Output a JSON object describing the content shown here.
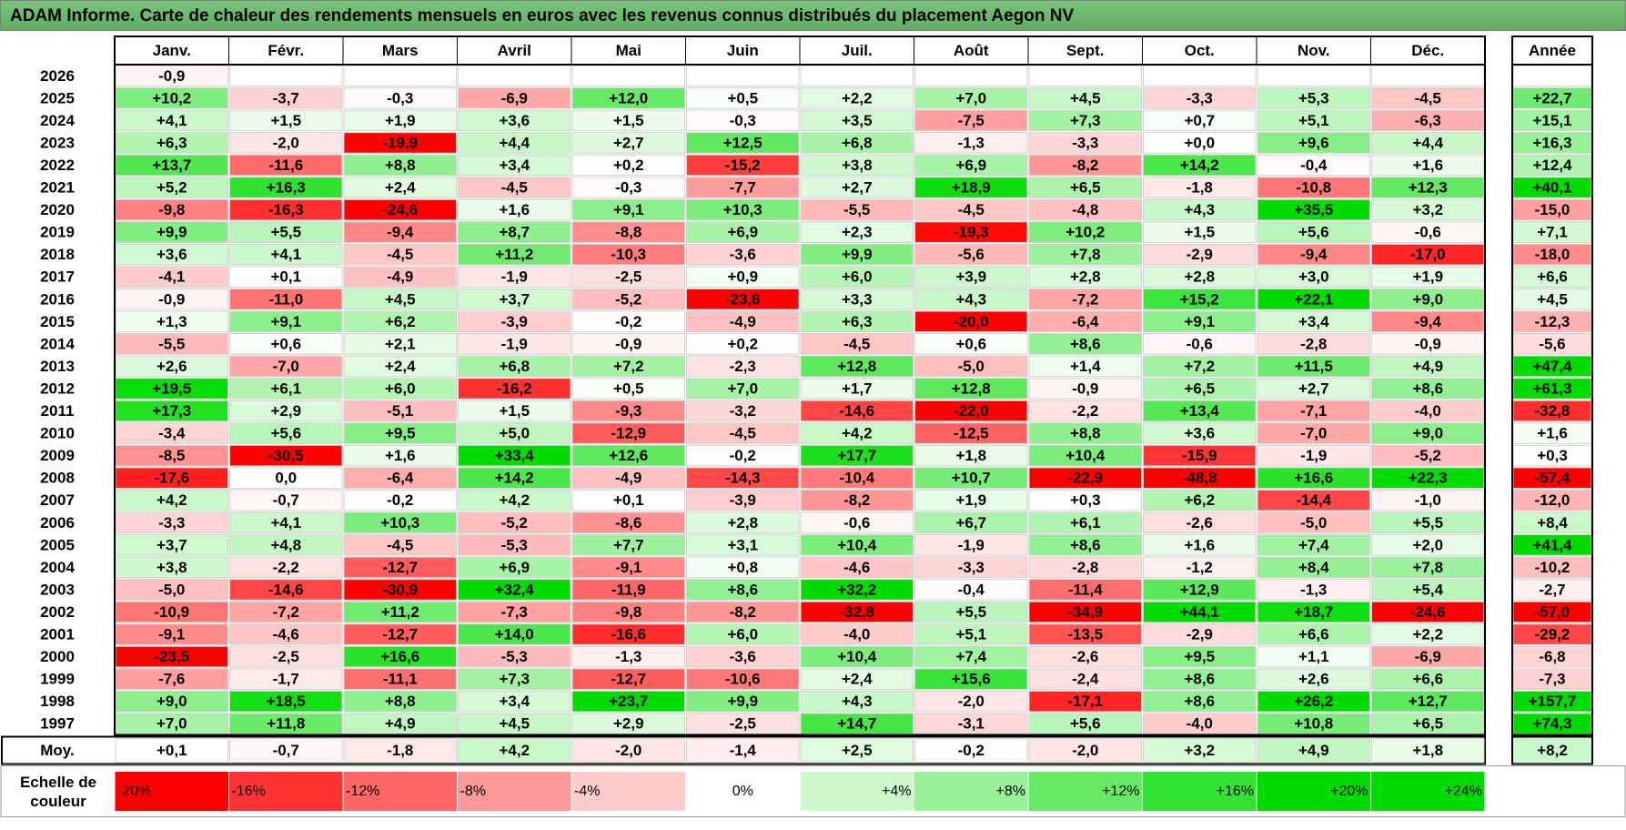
{
  "title": "ADAM Informe. Carte de chaleur des rendements mensuels en euros avec les revenus connus distribués du placement Aegon NV",
  "chart_data": {
    "type": "heatmap",
    "months": [
      "Janv.",
      "Févr.",
      "Mars",
      "Avril",
      "Mai",
      "Juin",
      "Juil.",
      "Août",
      "Sept.",
      "Oct.",
      "Nov.",
      "Déc."
    ],
    "year_header": "Année",
    "rows": [
      {
        "year": "2026",
        "months": [
          "-0,9",
          "",
          "",
          "",
          "",
          "",
          "",
          "",
          "",
          "",
          "",
          ""
        ],
        "annual": ""
      },
      {
        "year": "2025",
        "months": [
          "+10,2",
          "-3,7",
          "-0,3",
          "-6,9",
          "+12,0",
          "+0,5",
          "+2,2",
          "+7,0",
          "+4,5",
          "-3,3",
          "+5,3",
          "-4,5"
        ],
        "annual": "+22,7"
      },
      {
        "year": "2024",
        "months": [
          "+4,1",
          "+1,5",
          "+1,9",
          "+3,6",
          "+1,5",
          "-0,3",
          "+3,5",
          "-7,5",
          "+7,3",
          "+0,7",
          "+5,1",
          "-6,3"
        ],
        "annual": "+15,1"
      },
      {
        "year": "2023",
        "months": [
          "+6,3",
          "-2,0",
          "-19,9",
          "+4,4",
          "+2,7",
          "+12,5",
          "+6,8",
          "-1,3",
          "-3,3",
          "+0,0",
          "+9,6",
          "+4,4"
        ],
        "annual": "+16,3"
      },
      {
        "year": "2022",
        "months": [
          "+13,7",
          "-11,6",
          "+8,8",
          "+3,4",
          "+0,2",
          "-15,2",
          "+3,8",
          "+6,9",
          "-8,2",
          "+14,2",
          "-0,4",
          "+1,6"
        ],
        "annual": "+12,4"
      },
      {
        "year": "2021",
        "months": [
          "+5,2",
          "+16,3",
          "+2,4",
          "-4,5",
          "-0,3",
          "-7,7",
          "+2,7",
          "+18,9",
          "+6,5",
          "-1,8",
          "-10,8",
          "+12,3"
        ],
        "annual": "+40,1"
      },
      {
        "year": "2020",
        "months": [
          "-9,8",
          "-16,3",
          "-24,6",
          "+1,6",
          "+9,1",
          "+10,3",
          "-5,5",
          "-4,5",
          "-4,8",
          "+4,3",
          "+35,5",
          "+3,2"
        ],
        "annual": "-15,0"
      },
      {
        "year": "2019",
        "months": [
          "+9,9",
          "+5,5",
          "-9,4",
          "+8,7",
          "-8,8",
          "+6,9",
          "+2,3",
          "-19,3",
          "+10,2",
          "+1,5",
          "+5,6",
          "-0,6"
        ],
        "annual": "+7,1"
      },
      {
        "year": "2018",
        "months": [
          "+3,6",
          "+4,1",
          "-4,5",
          "+11,2",
          "-10,3",
          "-3,6",
          "+9,9",
          "-5,6",
          "+7,8",
          "-2,9",
          "-9,4",
          "-17,0"
        ],
        "annual": "-18,0"
      },
      {
        "year": "2017",
        "months": [
          "-4,1",
          "+0,1",
          "-4,9",
          "-1,9",
          "-2,5",
          "+0,9",
          "+6,0",
          "+3,9",
          "+2,8",
          "+2,8",
          "+3,0",
          "+1,9"
        ],
        "annual": "+6,6"
      },
      {
        "year": "2016",
        "months": [
          "-0,9",
          "-11,0",
          "+4,5",
          "+3,7",
          "-5,2",
          "-23,6",
          "+3,3",
          "+4,3",
          "-7,2",
          "+15,2",
          "+22,1",
          "+9,0"
        ],
        "annual": "+4,5"
      },
      {
        "year": "2015",
        "months": [
          "+1,3",
          "+9,1",
          "+6,2",
          "-3,9",
          "-0,2",
          "-4,9",
          "+6,3",
          "-20,0",
          "-6,4",
          "+9,1",
          "+3,4",
          "-9,4"
        ],
        "annual": "-12,3"
      },
      {
        "year": "2014",
        "months": [
          "-5,5",
          "+0,6",
          "+2,1",
          "-1,9",
          "-0,9",
          "+0,2",
          "-4,5",
          "+0,6",
          "+8,6",
          "-0,6",
          "-2,8",
          "-0,9"
        ],
        "annual": "-5,6"
      },
      {
        "year": "2013",
        "months": [
          "+2,6",
          "-7,0",
          "+2,4",
          "+6,8",
          "+7,2",
          "-2,3",
          "+12,8",
          "-5,0",
          "+1,4",
          "+7,2",
          "+11,5",
          "+4,9"
        ],
        "annual": "+47,4"
      },
      {
        "year": "2012",
        "months": [
          "+19,5",
          "+6,1",
          "+6,0",
          "-16,2",
          "+0,5",
          "+7,0",
          "+1,7",
          "+12,8",
          "-0,9",
          "+6,5",
          "+2,7",
          "+8,6"
        ],
        "annual": "+61,3"
      },
      {
        "year": "2011",
        "months": [
          "+17,3",
          "+2,9",
          "-5,1",
          "+1,5",
          "-9,3",
          "-3,2",
          "-14,6",
          "-22,0",
          "-2,2",
          "+13,4",
          "-7,1",
          "-4,0"
        ],
        "annual": "-32,8"
      },
      {
        "year": "2010",
        "months": [
          "-3,4",
          "+5,6",
          "+9,5",
          "+5,0",
          "-12,9",
          "-4,5",
          "+4,2",
          "-12,5",
          "+8,8",
          "+3,6",
          "-7,0",
          "+9,0"
        ],
        "annual": "+1,6"
      },
      {
        "year": "2009",
        "months": [
          "-8,5",
          "-30,5",
          "+1,6",
          "+33,4",
          "+12,6",
          "-0,2",
          "+17,7",
          "+1,8",
          "+10,4",
          "-15,9",
          "-1,9",
          "-5,2"
        ],
        "annual": "+0,3"
      },
      {
        "year": "2008",
        "months": [
          "-17,6",
          "0,0",
          "-6,4",
          "+14,2",
          "-4,9",
          "-14,3",
          "-10,4",
          "+10,7",
          "-22,9",
          "-48,8",
          "+16,6",
          "+22,3"
        ],
        "annual": "-57,4"
      },
      {
        "year": "2007",
        "months": [
          "+4,2",
          "-0,7",
          "-0,2",
          "+4,2",
          "+0,1",
          "-3,9",
          "-8,2",
          "+1,9",
          "+0,3",
          "+6,2",
          "-14,4",
          "-1,0"
        ],
        "annual": "-12,0"
      },
      {
        "year": "2006",
        "months": [
          "-3,3",
          "+4,1",
          "+10,3",
          "-5,2",
          "-8,6",
          "+2,8",
          "-0,6",
          "+6,7",
          "+6,1",
          "-2,6",
          "-5,0",
          "+5,5"
        ],
        "annual": "+8,4"
      },
      {
        "year": "2005",
        "months": [
          "+3,7",
          "+4,8",
          "-4,5",
          "-5,3",
          "+7,7",
          "+3,1",
          "+10,4",
          "-1,9",
          "+8,6",
          "+1,6",
          "+7,4",
          "+2,0"
        ],
        "annual": "+41,4"
      },
      {
        "year": "2004",
        "months": [
          "+3,8",
          "-2,2",
          "-12,7",
          "+6,9",
          "-9,1",
          "+0,8",
          "-4,6",
          "-3,3",
          "-2,8",
          "-1,2",
          "+8,4",
          "+7,8"
        ],
        "annual": "-10,2"
      },
      {
        "year": "2003",
        "months": [
          "-5,0",
          "-14,6",
          "-30,9",
          "+32,4",
          "-11,9",
          "+8,6",
          "+32,2",
          "-0,4",
          "-11,4",
          "+12,9",
          "-1,3",
          "+5,4"
        ],
        "annual": "-2,7"
      },
      {
        "year": "2002",
        "months": [
          "-10,9",
          "-7,2",
          "+11,2",
          "-7,3",
          "-9,8",
          "-8,2",
          "-32,8",
          "+5,5",
          "-34,9",
          "+44,1",
          "+18,7",
          "-24,6"
        ],
        "annual": "-57,0"
      },
      {
        "year": "2001",
        "months": [
          "-9,1",
          "-4,6",
          "-12,7",
          "+14,0",
          "-16,6",
          "+6,0",
          "-4,0",
          "+5,1",
          "-13,5",
          "-2,9",
          "+6,6",
          "+2,2"
        ],
        "annual": "-29,2"
      },
      {
        "year": "2000",
        "months": [
          "-23,5",
          "-2,5",
          "+16,6",
          "-5,3",
          "-1,3",
          "-3,6",
          "+10,4",
          "+7,4",
          "-2,6",
          "+9,5",
          "+1,1",
          "-6,9"
        ],
        "annual": "-6,8"
      },
      {
        "year": "1999",
        "months": [
          "-7,6",
          "-1,7",
          "-11,1",
          "+7,3",
          "-12,7",
          "-10,6",
          "+2,4",
          "+15,6",
          "-2,4",
          "+8,6",
          "+2,6",
          "+6,6"
        ],
        "annual": "-7,3"
      },
      {
        "year": "1998",
        "months": [
          "+9,0",
          "+18,5",
          "+8,8",
          "+3,4",
          "+23,7",
          "+9,9",
          "+4,3",
          "-2,0",
          "-17,1",
          "+8,6",
          "+26,2",
          "+12,7"
        ],
        "annual": "+157,7"
      },
      {
        "year": "1997",
        "months": [
          "+7,0",
          "+11,8",
          "+4,9",
          "+4,5",
          "+2,9",
          "-2,5",
          "+14,7",
          "-3,1",
          "+5,6",
          "-4,0",
          "+10,8",
          "+6,5"
        ],
        "annual": "+74,3"
      }
    ],
    "average": {
      "label": "Moy.",
      "months": [
        "+0,1",
        "-0,7",
        "-1,8",
        "+4,2",
        "-2,0",
        "-1,4",
        "+2,5",
        "-0,2",
        "-2,0",
        "+3,2",
        "+4,9",
        "+1,8"
      ],
      "annual": "+8,2"
    },
    "legend": {
      "label_line1": "Echelle de",
      "label_line2": "couleur",
      "stops": [
        "-20%",
        "-16%",
        "-12%",
        "-8%",
        "-4%",
        "0%",
        "+4%",
        "+8%",
        "+12%",
        "+16%",
        "+20%",
        "+24%"
      ],
      "values": [
        -20,
        -16,
        -12,
        -8,
        -4,
        0,
        4,
        8,
        12,
        16,
        20,
        24
      ]
    }
  }
}
